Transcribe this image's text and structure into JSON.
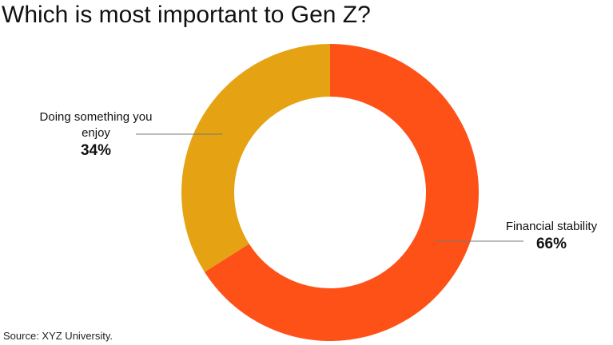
{
  "chart_data": {
    "type": "donut",
    "title": "Which is most important to Gen Z?",
    "categories": [
      "Financial stability",
      "Doing something you enjoy"
    ],
    "values": [
      66,
      34
    ],
    "value_labels": [
      "66%",
      "34%"
    ],
    "colors": [
      "#fe5118",
      "#e5a313"
    ],
    "source": "Source: XYZ University."
  }
}
